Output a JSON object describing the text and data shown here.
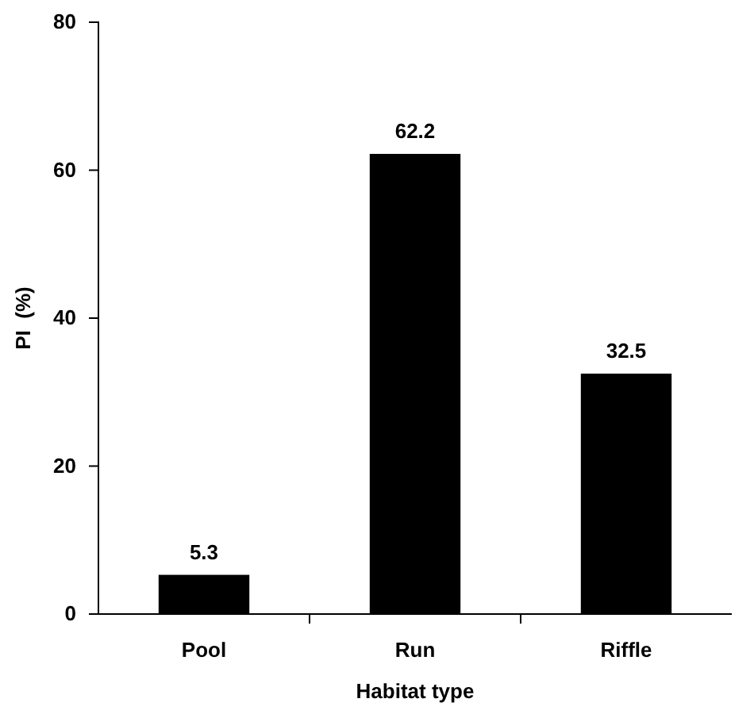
{
  "chart_data": {
    "type": "bar",
    "xlabel": "Habitat type",
    "ylabel": "PI  (%)",
    "categories": [
      "Pool",
      "Run",
      "Riffle"
    ],
    "values": [
      5.3,
      62.2,
      32.5
    ],
    "color": "#000000",
    "ylim": [
      0,
      80
    ],
    "yticks": [
      0,
      20,
      40,
      60,
      80
    ],
    "data_labels": true,
    "grid": false
  }
}
